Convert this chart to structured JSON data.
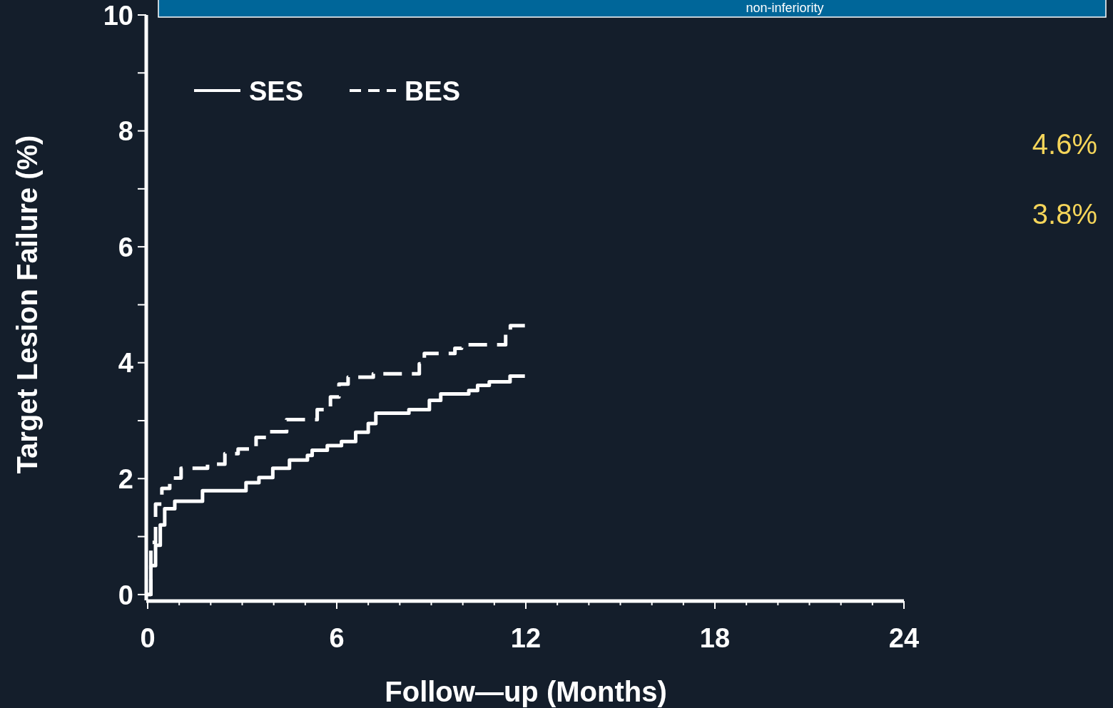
{
  "chart_data": {
    "type": "step",
    "xlabel": "Follow—up  (Months)",
    "ylabel": "Target Lesion Failure (%)",
    "xlim": [
      0,
      24
    ],
    "ylim": [
      -0.1,
      10
    ],
    "xticks": [
      0,
      {
        "value": 1,
        "label": null
      },
      {
        "value": 2,
        "label": null
      },
      {
        "value": 3,
        "label": null
      },
      {
        "value": 4,
        "label": null
      },
      {
        "value": 5,
        "label": null
      },
      6,
      {
        "value": 7,
        "label": null
      },
      {
        "value": 8,
        "label": null
      },
      {
        "value": 9,
        "label": null
      },
      {
        "value": 10,
        "label": null
      },
      {
        "value": 11,
        "label": null
      },
      12,
      {
        "value": 13,
        "label": null
      },
      {
        "value": 14,
        "label": null
      },
      {
        "value": 15,
        "label": null
      },
      {
        "value": 16,
        "label": null
      },
      {
        "value": 17,
        "label": null
      },
      18,
      {
        "value": 19,
        "label": null
      },
      {
        "value": 20,
        "label": null
      },
      {
        "value": 21,
        "label": null
      },
      {
        "value": 22,
        "label": null
      },
      {
        "value": 23,
        "label": null
      },
      24
    ],
    "yticks": [
      0,
      {
        "value": 1,
        "label": null
      },
      2,
      {
        "value": 3,
        "label": null
      },
      4,
      {
        "value": 5,
        "label": null
      },
      6,
      {
        "value": 7,
        "label": null
      },
      8,
      {
        "value": 9,
        "label": null
      },
      10
    ],
    "legend": "top left",
    "grid": false,
    "series": [
      {
        "name": "SES",
        "color": "#ffffff",
        "line_style": "solid",
        "x": [
          0,
          0.1,
          0.25,
          0.4,
          0.54,
          0.86,
          1.74,
          3.12,
          3.53,
          3.97,
          4.5,
          5.07,
          5.22,
          5.7,
          6.15,
          6.6,
          7.0,
          7.24,
          8.29,
          8.94,
          9.3,
          10.19,
          10.47,
          10.84,
          11.5,
          11.97
        ],
        "values": [
          0,
          0.5,
          0.85,
          1.2,
          1.48,
          1.61,
          1.79,
          1.93,
          2.02,
          2.18,
          2.32,
          2.4,
          2.49,
          2.57,
          2.64,
          2.8,
          2.95,
          3.13,
          3.19,
          3.35,
          3.46,
          3.52,
          3.61,
          3.67,
          3.77,
          3.77
        ]
      },
      {
        "name": "BES",
        "color": "#ffffff",
        "line_style": "dashed",
        "x": [
          0,
          0.1,
          0.25,
          0.45,
          0.7,
          1.06,
          1.9,
          2.45,
          2.87,
          3.44,
          3.77,
          4.41,
          5.38,
          5.8,
          6.07,
          6.36,
          7.16,
          8.62,
          8.78,
          9.75,
          9.96,
          11.36,
          11.51,
          11.97
        ],
        "values": [
          0,
          0.9,
          1.56,
          1.83,
          2.01,
          2.18,
          2.25,
          2.43,
          2.51,
          2.71,
          2.81,
          3.02,
          3.19,
          3.41,
          3.63,
          3.75,
          3.81,
          3.98,
          4.16,
          4.25,
          4.31,
          4.51,
          4.64,
          4.64
        ]
      }
    ],
    "annotations": [
      "non-inferiority",
      "4.6%",
      "3.8%"
    ]
  }
}
